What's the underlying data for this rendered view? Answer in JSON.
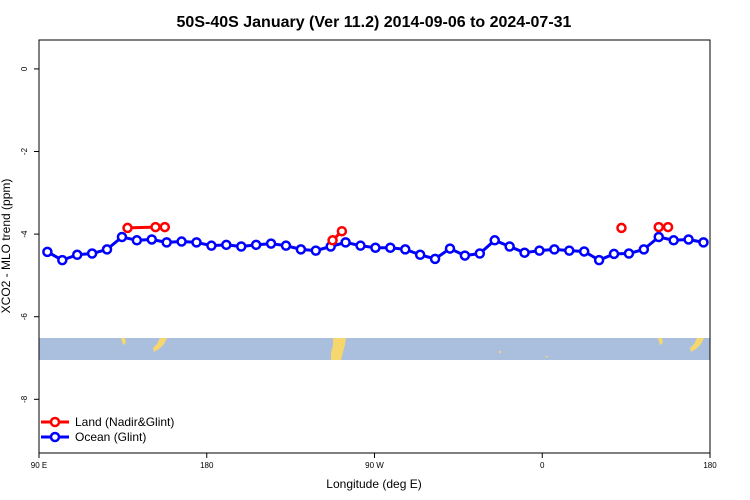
{
  "chart_data": {
    "type": "line",
    "title": "50S-40S January (Ver 11.2)   2014-09-06 to 2024-07-31",
    "xlabel": "Longitude (deg E)",
    "ylabel": "XCO2 - MLO trend (ppm)",
    "xlim": [
      90,
      450
    ],
    "ylim": [
      -9.3,
      0.7
    ],
    "x_ticks": [
      90,
      180,
      270,
      360,
      450
    ],
    "x_tick_labels": [
      "90 E",
      "180",
      "90 W",
      "0",
      "180"
    ],
    "y_ticks": [
      0,
      -2,
      -4,
      -6,
      -8
    ],
    "y_tick_labels": [
      "0",
      "-2",
      "-4",
      "-6",
      "-8"
    ],
    "map_band": {
      "lat_range": [
        "50S",
        "40S"
      ],
      "ocean_color": "#a9bfdd",
      "land_color": "#f5d76e"
    },
    "legend": {
      "position": "bottom-left",
      "entries": [
        "Land (Nadir&Glint)",
        "Ocean (Glint)"
      ]
    },
    "series": [
      {
        "name": "Land (Nadir&Glint)",
        "color": "#ff0000",
        "segments": [
          {
            "x": [
              137.5,
              152.5,
              157.5
            ],
            "y": [
              -3.85,
              -3.83,
              -3.83
            ]
          },
          {
            "x": [
              247.5,
              252.5
            ],
            "y": [
              -4.15,
              -3.93
            ]
          },
          {
            "x": [
              402.5
            ],
            "y": [
              -3.85
            ]
          },
          {
            "x": [
              422.5,
              427.5
            ],
            "y": [
              -3.83,
              -3.83
            ]
          }
        ]
      },
      {
        "name": "Ocean (Glint)",
        "color": "#0000ff",
        "x": [
          94.5,
          102.5,
          110.5,
          118.5,
          126.5,
          134.5,
          142.5,
          150.5,
          158.5,
          166.5,
          174.5,
          182.5,
          190.5,
          198.5,
          206.5,
          214.5,
          222.5,
          230.5,
          238.5,
          246.5,
          254.5,
          262.5,
          270.5,
          278.5,
          286.5,
          294.5,
          302.5,
          310.5,
          318.5,
          326.5,
          334.5,
          342.5,
          350.5,
          358.5,
          366.5,
          374.5,
          382.5,
          390.5,
          398.5,
          406.5,
          414.5,
          422.5,
          430.5,
          438.5,
          446.5
        ],
        "y": [
          -4.43,
          -4.63,
          -4.5,
          -4.47,
          -4.37,
          -4.07,
          -4.15,
          -4.13,
          -4.2,
          -4.18,
          -4.2,
          -4.28,
          -4.26,
          -4.3,
          -4.26,
          -4.23,
          -4.28,
          -4.37,
          -4.4,
          -4.3,
          -4.2,
          -4.28,
          -4.33,
          -4.33,
          -4.37,
          -4.5,
          -4.6,
          -4.35,
          -4.52,
          -4.47,
          -4.15,
          -4.3,
          -4.45,
          -4.4,
          -4.37,
          -4.4,
          -4.42,
          -4.63,
          -4.48,
          -4.47,
          -4.37,
          -4.07,
          -4.15,
          -4.13,
          -4.2
        ]
      }
    ]
  }
}
